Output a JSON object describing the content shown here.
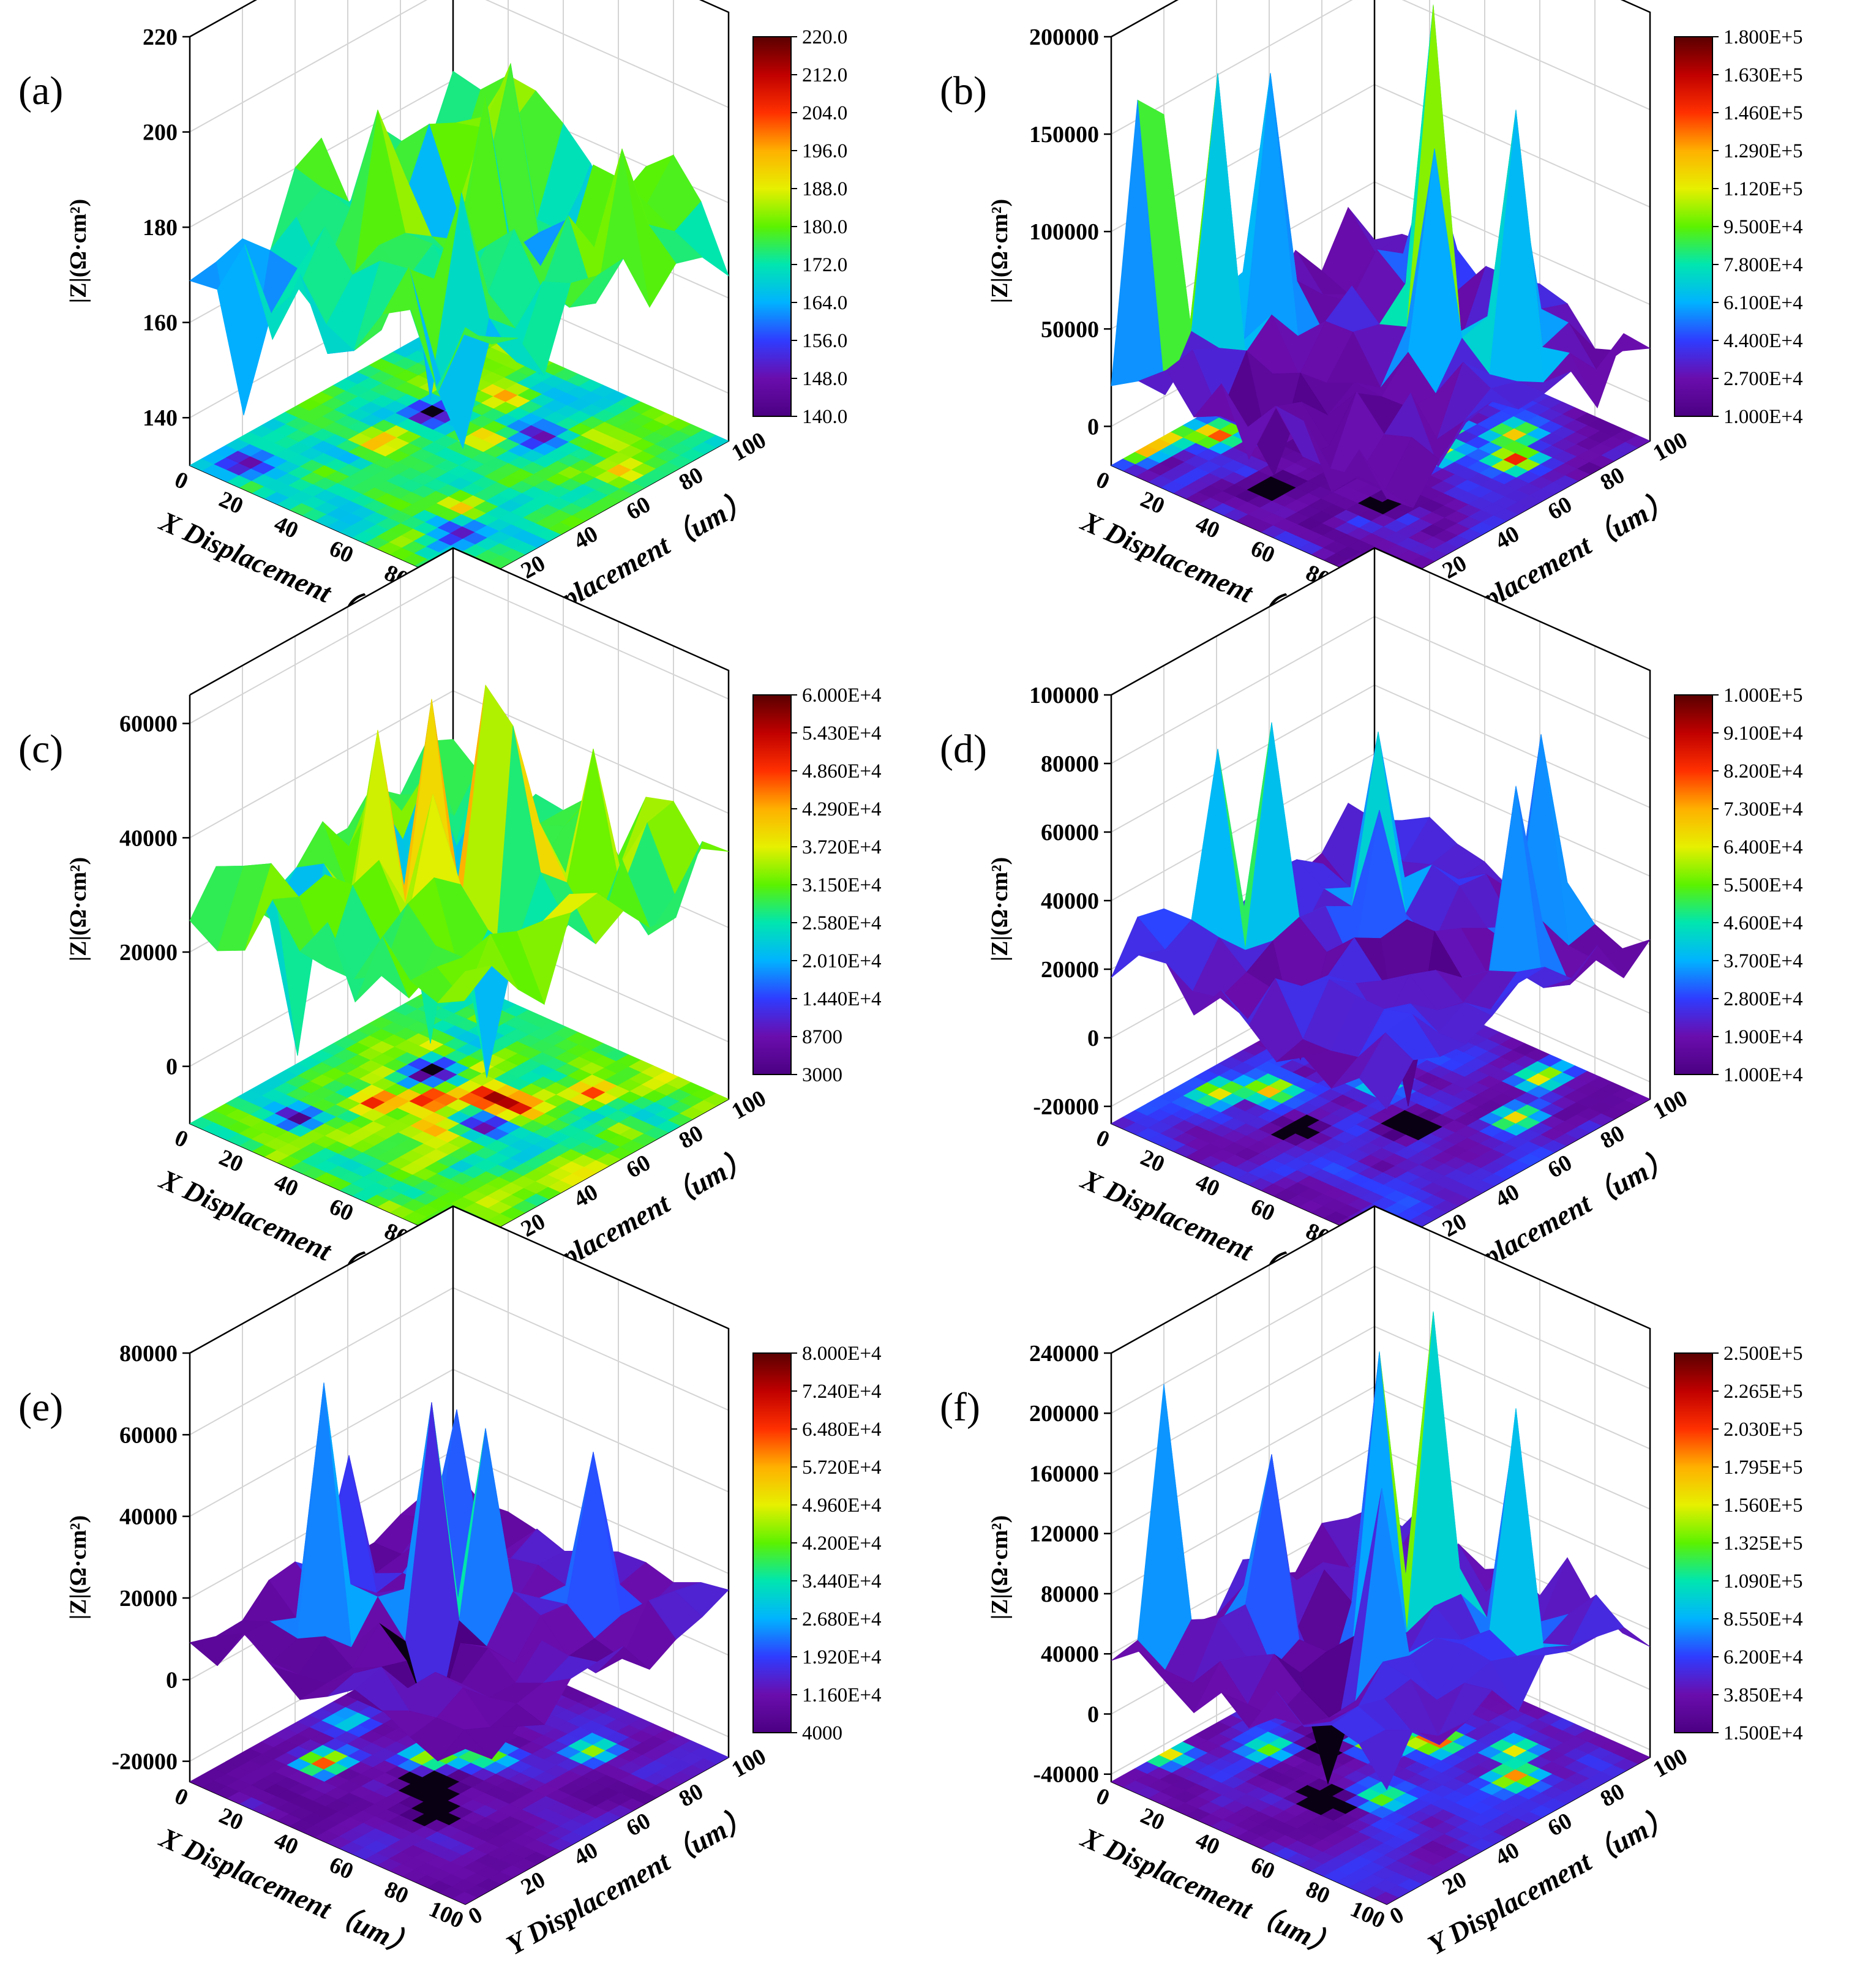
{
  "figure": {
    "type": "3d-surface-grid",
    "panel_count": 6
  },
  "chart_data": [
    {
      "type": "surface",
      "panel": "(a)",
      "xlabel": "X Displacement（um）",
      "ylabel": "Y Displacement（um）",
      "zlabel": "|Z|(Ω·cm²)",
      "x_ticks": [
        "0",
        "20",
        "40",
        "60",
        "80",
        "100"
      ],
      "y_ticks": [
        "0",
        "20",
        "40",
        "60",
        "80",
        "100"
      ],
      "z_ticks": [
        "140",
        "160",
        "180",
        "200",
        "220"
      ],
      "zlim": [
        130,
        220
      ],
      "colorbar_ticks": [
        "220.0",
        "212.0",
        "204.0",
        "196.0",
        "188.0",
        "180.0",
        "172.0",
        "164.0",
        "156.0",
        "148.0",
        "140.0"
      ],
      "colorbar_range": [
        140,
        220
      ],
      "grid": true,
      "surface_base": 175,
      "surface_noise": 12,
      "peaks": [
        [
          3,
          4,
          200
        ],
        [
          5,
          6,
          202
        ],
        [
          4,
          8,
          200
        ],
        [
          7,
          3,
          196
        ],
        [
          9,
          7,
          198
        ]
      ],
      "dips": [
        [
          3,
          6,
          133
        ],
        [
          6,
          7,
          143
        ],
        [
          1,
          1,
          140
        ],
        [
          8,
          2,
          148
        ]
      ],
      "seed": 11
    },
    {
      "type": "surface",
      "panel": "(b)",
      "xlabel": "X Displacement（um）",
      "ylabel": "Y Displacement（um）",
      "zlabel": "|Z|(Ω·cm²)",
      "x_ticks": [
        "0",
        "20",
        "40",
        "60",
        "80"
      ],
      "y_ticks": [
        "0",
        "20",
        "40",
        "60",
        "80",
        "100"
      ],
      "z_ticks": [
        "0",
        "50000",
        "100000",
        "150000",
        "200000"
      ],
      "zlim": [
        -20000,
        200000
      ],
      "colorbar_ticks": [
        "1.800E+5",
        "1.630E+5",
        "1.460E+5",
        "1.290E+5",
        "1.120E+5",
        "9.500E+4",
        "7.800E+4",
        "6.100E+4",
        "4.400E+4",
        "2.700E+4",
        "1.000E+4"
      ],
      "colorbar_range": [
        10000,
        180000
      ],
      "grid": true,
      "surface_base": 30000,
      "surface_noise": 18000,
      "peaks": [
        [
          0,
          1,
          160000
        ],
        [
          0,
          2,
          145000
        ],
        [
          1,
          3,
          165000
        ],
        [
          1,
          5,
          150000
        ],
        [
          5,
          7,
          195000
        ],
        [
          6,
          6,
          135000
        ],
        [
          8,
          7,
          160000
        ],
        [
          7,
          8,
          130000
        ],
        [
          3,
          9,
          90000
        ]
      ],
      "dips": [
        [
          4,
          2,
          -15000
        ],
        [
          7,
          3,
          -10000
        ]
      ],
      "seed": 23
    },
    {
      "type": "surface",
      "panel": "(c)",
      "xlabel": "X Displacement（um）",
      "ylabel": "Y Displacement（um）",
      "zlabel": "|Z|(Ω·cm²)",
      "x_ticks": [
        "0",
        "20",
        "40",
        "60",
        "80",
        "100"
      ],
      "y_ticks": [
        "0",
        "20",
        "40",
        "60",
        "80",
        "100"
      ],
      "z_ticks": [
        "0",
        "20000",
        "40000",
        "60000"
      ],
      "zlim": [
        -10000,
        65000
      ],
      "colorbar_ticks": [
        "6.000E+4",
        "5.430E+4",
        "4.860E+4",
        "4.290E+4",
        "3.720E+4",
        "3.150E+4",
        "2.580E+4",
        "2.010E+4",
        "1.440E+4",
        "8700",
        "3000"
      ],
      "colorbar_range": [
        3000,
        60000
      ],
      "grid": true,
      "surface_base": 30000,
      "surface_noise": 9000,
      "peaks": [
        [
          3,
          4,
          55000
        ],
        [
          4,
          5,
          60000
        ],
        [
          5,
          6,
          62000
        ],
        [
          6,
          6,
          57000
        ],
        [
          7,
          8,
          50000
        ],
        [
          5,
          4,
          48000
        ]
      ],
      "dips": [
        [
          3,
          6,
          -5000
        ],
        [
          6,
          5,
          -2000
        ],
        [
          2,
          2,
          1000
        ]
      ],
      "seed": 37
    },
    {
      "type": "surface",
      "panel": "(d)",
      "xlabel": "X Displacement（um）",
      "ylabel": "Y Displacement（um）",
      "zlabel": "|Z|(Ω·cm²)",
      "x_ticks": [
        "0",
        "20",
        "40",
        "60",
        "80"
      ],
      "y_ticks": [
        "0",
        "20",
        "40",
        "60",
        "80",
        "100"
      ],
      "z_ticks": [
        "-20000",
        "0",
        "20000",
        "40000",
        "60000",
        "80000",
        "100000"
      ],
      "zlim": [
        -25000,
        100000
      ],
      "colorbar_ticks": [
        "1.000E+5",
        "9.100E+4",
        "8.200E+4",
        "7.300E+4",
        "6.400E+4",
        "5.500E+4",
        "4.600E+4",
        "3.700E+4",
        "2.800E+4",
        "1.900E+4",
        "1.000E+4"
      ],
      "colorbar_range": [
        10000,
        100000
      ],
      "grid": true,
      "surface_base": 22000,
      "surface_noise": 9000,
      "peaks": [
        [
          1,
          3,
          75000
        ],
        [
          2,
          4,
          82000
        ],
        [
          3,
          7,
          70000
        ],
        [
          8,
          7,
          72000
        ],
        [
          7,
          9,
          75000
        ],
        [
          4,
          6,
          55000
        ]
      ],
      "dips": [
        [
          6,
          5,
          -20000
        ],
        [
          4,
          3,
          -5000
        ]
      ],
      "seed": 41
    },
    {
      "type": "surface",
      "panel": "(e)",
      "xlabel": "X Displacement（um）",
      "ylabel": "Y Displacement（um）",
      "zlabel": "|Z|(Ω·cm²)",
      "x_ticks": [
        "0",
        "20",
        "40",
        "60",
        "80",
        "100"
      ],
      "y_ticks": [
        "0",
        "20",
        "40",
        "60",
        "80",
        "100"
      ],
      "z_ticks": [
        "-20000",
        "0",
        "20000",
        "40000",
        "60000",
        "80000"
      ],
      "zlim": [
        -25000,
        80000
      ],
      "colorbar_ticks": [
        "8.000E+4",
        "7.240E+4",
        "6.480E+4",
        "5.720E+4",
        "4.960E+4",
        "4.200E+4",
        "3.440E+4",
        "2.680E+4",
        "1.920E+4",
        "1.160E+4",
        "4000"
      ],
      "colorbar_range": [
        4000,
        80000
      ],
      "grid": true,
      "surface_base": 12000,
      "surface_noise": 6000,
      "peaks": [
        [
          2,
          3,
          68000
        ],
        [
          4,
          5,
          62000
        ],
        [
          5,
          6,
          55000
        ],
        [
          3,
          7,
          50000
        ],
        [
          7,
          8,
          48000
        ],
        [
          1,
          5,
          40000
        ]
      ],
      "dips": [
        [
          5,
          4,
          -15000
        ],
        [
          6,
          3,
          -5000
        ]
      ],
      "seed": 53
    },
    {
      "type": "surface",
      "panel": "(f)",
      "xlabel": "X Displacement（um）",
      "ylabel": "Y Displacement（um）",
      "zlabel": "|Z|(Ω·cm²)",
      "x_ticks": [
        "0",
        "20",
        "40",
        "60",
        "80",
        "100"
      ],
      "y_ticks": [
        "0",
        "20",
        "40",
        "60",
        "80",
        "100"
      ],
      "z_ticks": [
        "-40000",
        "0",
        "40000",
        "80000",
        "120000",
        "160000",
        "200000",
        "240000"
      ],
      "zlim": [
        -45000,
        240000
      ],
      "colorbar_ticks": [
        "2.500E+5",
        "2.265E+5",
        "2.030E+5",
        "1.795E+5",
        "1.560E+5",
        "1.325E+5",
        "1.090E+5",
        "8.550E+4",
        "6.200E+4",
        "3.850E+4",
        "1.500E+4"
      ],
      "colorbar_range": [
        15000,
        250000
      ],
      "grid": true,
      "surface_base": 45000,
      "surface_noise": 20000,
      "peaks": [
        [
          0,
          2,
          200000
        ],
        [
          5,
          7,
          240000
        ],
        [
          4,
          6,
          215000
        ],
        [
          8,
          7,
          200000
        ],
        [
          7,
          8,
          170000
        ],
        [
          2,
          4,
          150000
        ],
        [
          6,
          4,
          160000
        ]
      ],
      "dips": [
        [
          5,
          3,
          -35000
        ],
        [
          3,
          5,
          -10000
        ]
      ],
      "seed": 67
    }
  ]
}
